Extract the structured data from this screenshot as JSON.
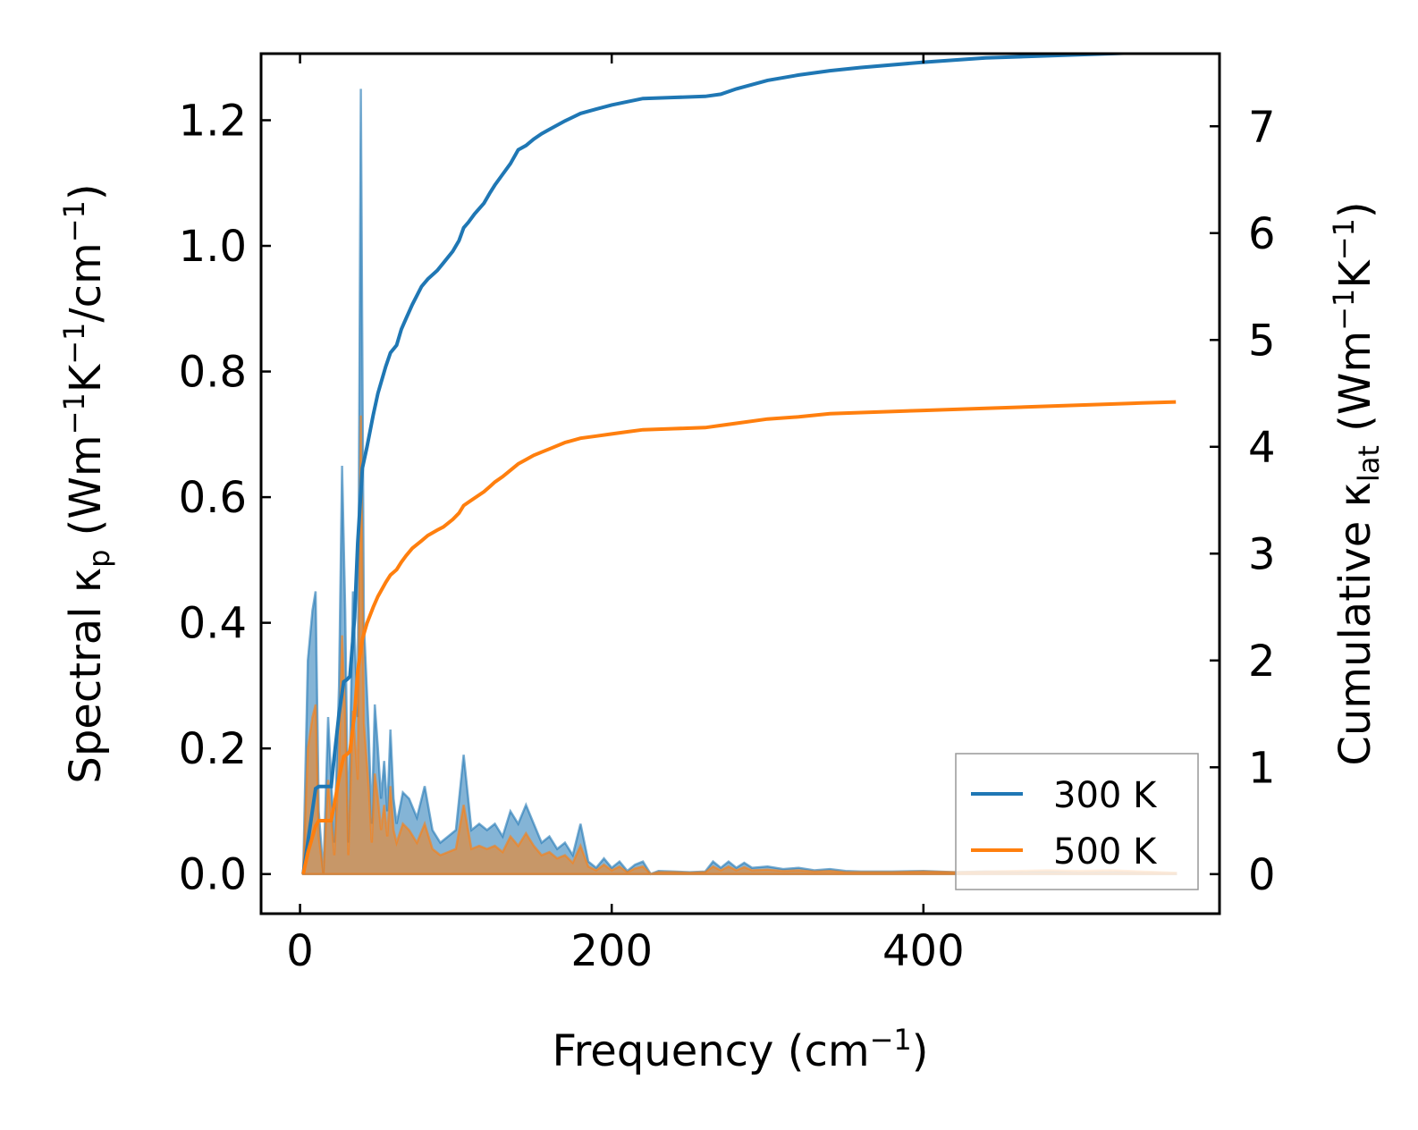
{
  "chart_data": {
    "type": "area",
    "xlabel_main": "Frequency (cm",
    "xlabel_sup": "−1",
    "xlabel_close": ")",
    "ylabel_left": {
      "prefix": "Spectral κ",
      "sub": "p",
      "mid1": " (Wm",
      "sup1": "−1",
      "mid2": "K",
      "sup2": "−1",
      "mid3": "/cm",
      "sup3": "−1",
      "close": ")"
    },
    "ylabel_right": {
      "prefix": "Cumulative κ",
      "sub": "lat",
      "mid1": " (Wm",
      "sup1": "−1",
      "mid2": "K",
      "sup2": "−1",
      "close": ")"
    },
    "xlim": [
      -25,
      590
    ],
    "ylim_left": [
      -0.063,
      1.306
    ],
    "ylim_right": [
      -0.37,
      7.68
    ],
    "x_ticks": [
      0,
      200,
      400
    ],
    "x_tick_labels": [
      "0",
      "200",
      "400"
    ],
    "y_left_ticks": [
      0.0,
      0.2,
      0.4,
      0.6,
      0.8,
      1.0,
      1.2
    ],
    "y_left_tick_labels": [
      "0.0",
      "0.2",
      "0.4",
      "0.6",
      "0.8",
      "1.0",
      "1.2"
    ],
    "y_right_ticks": [
      0,
      1,
      2,
      3,
      4,
      5,
      6,
      7
    ],
    "y_right_tick_labels": [
      "0",
      "1",
      "2",
      "3",
      "4",
      "5",
      "6",
      "7"
    ],
    "legend_position": "lower-right",
    "series": [
      {
        "name": "300 K",
        "color": "#1f77b4",
        "cumulative": {
          "x": [
            2,
            5,
            8,
            10,
            12,
            15,
            18,
            20,
            22,
            25,
            28,
            30,
            32,
            35,
            37,
            40,
            43,
            47,
            50,
            55,
            58,
            62,
            65,
            68,
            72,
            78,
            82,
            88,
            92,
            98,
            102,
            105,
            108,
            112,
            118,
            122,
            125,
            130,
            135,
            140,
            145,
            150,
            155,
            160,
            170,
            180,
            190,
            200,
            210,
            220,
            240,
            260,
            270,
            280,
            300,
            320,
            340,
            360,
            400,
            440,
            480,
            520,
            540,
            562
          ],
          "y": [
            0.0,
            0.3,
            0.6,
            0.8,
            0.82,
            0.82,
            0.82,
            0.82,
            1.1,
            1.5,
            1.8,
            1.82,
            1.85,
            2.4,
            3.1,
            3.8,
            4.0,
            4.3,
            4.5,
            4.75,
            4.88,
            4.95,
            5.1,
            5.2,
            5.33,
            5.5,
            5.57,
            5.65,
            5.72,
            5.83,
            5.93,
            6.05,
            6.1,
            6.18,
            6.28,
            6.38,
            6.45,
            6.55,
            6.65,
            6.78,
            6.82,
            6.88,
            6.93,
            6.97,
            7.05,
            7.12,
            7.16,
            7.2,
            7.23,
            7.26,
            7.27,
            7.28,
            7.3,
            7.35,
            7.43,
            7.48,
            7.52,
            7.55,
            7.6,
            7.64,
            7.66,
            7.68,
            7.69,
            7.69
          ]
        },
        "spectral": {
          "x": [
            2,
            5,
            8,
            10,
            12,
            15,
            18,
            22,
            25,
            27,
            29,
            31,
            34,
            37,
            39,
            41,
            44,
            46,
            48,
            50,
            52,
            54,
            56,
            58,
            60,
            62,
            66,
            70,
            75,
            80,
            85,
            90,
            95,
            100,
            105,
            110,
            115,
            120,
            125,
            130,
            135,
            140,
            145,
            150,
            155,
            160,
            165,
            170,
            175,
            180,
            185,
            190,
            195,
            200,
            205,
            210,
            215,
            220,
            225,
            230,
            240,
            250,
            260,
            265,
            270,
            275,
            280,
            285,
            290,
            300,
            310,
            320,
            330,
            340,
            350,
            360,
            380,
            400,
            420,
            440,
            460,
            480,
            500,
            520,
            540,
            562
          ],
          "y": [
            0.0,
            0.34,
            0.42,
            0.45,
            0.1,
            0.0,
            0.25,
            0.05,
            0.3,
            0.65,
            0.42,
            0.05,
            0.45,
            0.25,
            1.25,
            0.4,
            0.23,
            0.08,
            0.27,
            0.2,
            0.12,
            0.18,
            0.1,
            0.23,
            0.12,
            0.08,
            0.13,
            0.12,
            0.09,
            0.14,
            0.07,
            0.05,
            0.06,
            0.07,
            0.19,
            0.07,
            0.08,
            0.07,
            0.08,
            0.06,
            0.1,
            0.08,
            0.11,
            0.08,
            0.05,
            0.06,
            0.04,
            0.05,
            0.03,
            0.08,
            0.02,
            0.01,
            0.025,
            0.01,
            0.02,
            0.005,
            0.015,
            0.02,
            0.0,
            0.005,
            0.004,
            0.003,
            0.004,
            0.02,
            0.01,
            0.02,
            0.01,
            0.018,
            0.01,
            0.012,
            0.008,
            0.01,
            0.006,
            0.008,
            0.005,
            0.004,
            0.004,
            0.005,
            0.003,
            0.004,
            0.003,
            0.004,
            0.002,
            0.003,
            0.002,
            0.001
          ]
        }
      },
      {
        "name": "500 K",
        "color": "#ff7f0e",
        "cumulative": {
          "x": [
            2,
            5,
            8,
            10,
            12,
            15,
            18,
            20,
            22,
            25,
            28,
            30,
            32,
            35,
            37,
            40,
            43,
            47,
            50,
            55,
            58,
            62,
            65,
            68,
            72,
            78,
            82,
            88,
            92,
            98,
            102,
            105,
            108,
            112,
            118,
            122,
            125,
            130,
            135,
            140,
            145,
            150,
            155,
            160,
            170,
            180,
            190,
            200,
            210,
            220,
            240,
            260,
            270,
            280,
            300,
            320,
            340,
            360,
            400,
            440,
            480,
            520,
            540,
            562
          ],
          "y": [
            0.0,
            0.2,
            0.35,
            0.45,
            0.5,
            0.5,
            0.5,
            0.5,
            0.65,
            0.9,
            1.1,
            1.12,
            1.15,
            1.5,
            1.9,
            2.2,
            2.35,
            2.5,
            2.6,
            2.73,
            2.8,
            2.85,
            2.92,
            2.98,
            3.05,
            3.12,
            3.17,
            3.22,
            3.25,
            3.32,
            3.38,
            3.45,
            3.48,
            3.52,
            3.58,
            3.63,
            3.67,
            3.72,
            3.78,
            3.84,
            3.88,
            3.92,
            3.95,
            3.98,
            4.04,
            4.08,
            4.1,
            4.12,
            4.14,
            4.16,
            4.17,
            4.18,
            4.2,
            4.22,
            4.26,
            4.28,
            4.31,
            4.32,
            4.34,
            4.36,
            4.38,
            4.4,
            4.41,
            4.42
          ]
        },
        "spectral": {
          "x": [
            2,
            5,
            8,
            10,
            12,
            15,
            18,
            22,
            25,
            27,
            29,
            31,
            34,
            37,
            39,
            41,
            44,
            46,
            48,
            50,
            52,
            54,
            56,
            58,
            60,
            62,
            66,
            70,
            75,
            80,
            85,
            90,
            95,
            100,
            105,
            110,
            115,
            120,
            125,
            130,
            135,
            140,
            145,
            150,
            155,
            160,
            165,
            170,
            175,
            180,
            185,
            190,
            195,
            200,
            205,
            210,
            215,
            220,
            225,
            230,
            240,
            250,
            260,
            265,
            270,
            275,
            280,
            285,
            290,
            300,
            310,
            320,
            330,
            340,
            350,
            360,
            380,
            400,
            420,
            440,
            460,
            480,
            500,
            520,
            540,
            562
          ],
          "y": [
            0.0,
            0.2,
            0.25,
            0.27,
            0.06,
            0.0,
            0.15,
            0.03,
            0.18,
            0.38,
            0.25,
            0.03,
            0.26,
            0.15,
            0.73,
            0.24,
            0.14,
            0.05,
            0.16,
            0.12,
            0.07,
            0.11,
            0.06,
            0.14,
            0.07,
            0.05,
            0.08,
            0.07,
            0.05,
            0.08,
            0.04,
            0.03,
            0.035,
            0.04,
            0.11,
            0.04,
            0.045,
            0.04,
            0.045,
            0.035,
            0.06,
            0.045,
            0.065,
            0.045,
            0.03,
            0.035,
            0.025,
            0.03,
            0.018,
            0.045,
            0.012,
            0.006,
            0.015,
            0.006,
            0.012,
            0.003,
            0.009,
            0.012,
            0.0,
            0.003,
            0.003,
            0.002,
            0.003,
            0.012,
            0.006,
            0.012,
            0.006,
            0.011,
            0.006,
            0.007,
            0.005,
            0.006,
            0.004,
            0.005,
            0.003,
            0.003,
            0.003,
            0.004,
            0.003,
            0.004,
            0.005,
            0.006,
            0.005,
            0.006,
            0.004,
            0.002
          ]
        }
      }
    ]
  }
}
